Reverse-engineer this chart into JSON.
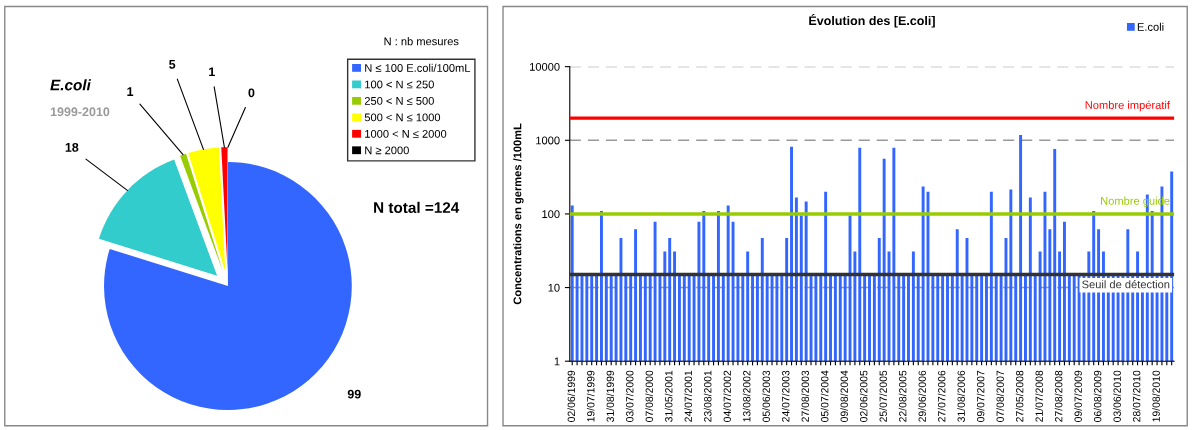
{
  "chart_data": [
    {
      "type": "pie",
      "title": "E.coli",
      "subtitle": "1999-2010",
      "categories": [
        "N ≤ 100 E.coli/100mL",
        "100 < N ≤ 250",
        "250 < N ≤ 500",
        "500 < N ≤ 1000",
        "1000 < N ≤ 2000",
        "N ≥ 2000"
      ],
      "values": [
        99,
        18,
        1,
        5,
        1,
        0
      ],
      "colors": [
        "#3366ff",
        "#33cccc",
        "#99cc00",
        "#ffff00",
        "#ff0000",
        "#000000"
      ],
      "value_labels": [
        "99",
        "18",
        "1",
        "5",
        "1",
        "0"
      ],
      "legend": "right",
      "annotations": [
        "N : nb mesures",
        "N total =124"
      ]
    },
    {
      "type": "bar",
      "title": "Évolution des [E.coli]",
      "ylabel": "Concentrations en germes /100mL",
      "categories": [
        "02/06/1999",
        null,
        null,
        null,
        "19/07/1999",
        null,
        null,
        null,
        "31/08/1999",
        null,
        null,
        null,
        "03/07/2000",
        null,
        null,
        null,
        "07/08/2000",
        null,
        null,
        null,
        "31/05/2001",
        null,
        null,
        null,
        "24/07/2001",
        null,
        null,
        null,
        "23/08/2001",
        null,
        null,
        null,
        "04/07/2002",
        null,
        null,
        null,
        "13/08/2002",
        null,
        null,
        null,
        "05/06/2003",
        null,
        null,
        null,
        "24/07/2003",
        null,
        null,
        null,
        "27/08/2003",
        null,
        null,
        null,
        "05/07/2004",
        null,
        null,
        null,
        "09/08/2004",
        null,
        null,
        null,
        "02/06/2005",
        null,
        null,
        null,
        "25/07/2005",
        null,
        null,
        null,
        "22/08/2005",
        null,
        null,
        null,
        "29/06/2006",
        null,
        null,
        null,
        "27/07/2006",
        null,
        null,
        null,
        "31/08/2006",
        null,
        null,
        null,
        "09/07/2007",
        null,
        null,
        null,
        "07/08/2007",
        null,
        null,
        null,
        "27/05/2008",
        null,
        null,
        null,
        "21/07/2008",
        null,
        null,
        null,
        "27/08/2008",
        null,
        null,
        null,
        "09/07/2009",
        null,
        null,
        null,
        "06/08/2009",
        null,
        null,
        null,
        "03/06/2010",
        null,
        null,
        null,
        "28/07/2010",
        null,
        null,
        null,
        "19/08/2010",
        null,
        null,
        null
      ],
      "series": [
        {
          "name": "E.coli",
          "color": "#3366ff",
          "values": [
            130,
            15,
            15,
            15,
            15,
            15,
            110,
            15,
            15,
            15,
            47,
            15,
            15,
            62,
            15,
            15,
            15,
            78,
            15,
            31,
            47,
            31,
            15,
            15,
            15,
            15,
            78,
            110,
            15,
            15,
            110,
            15,
            130,
            78,
            15,
            15,
            31,
            15,
            15,
            47,
            15,
            15,
            15,
            15,
            47,
            820,
            167,
            95,
            147,
            15,
            15,
            15,
            200,
            15,
            15,
            15,
            15,
            95,
            31,
            790,
            15,
            15,
            15,
            47,
            560,
            31,
            790,
            15,
            15,
            15,
            31,
            15,
            235,
            200,
            15,
            15,
            15,
            15,
            15,
            62,
            15,
            47,
            15,
            15,
            15,
            15,
            200,
            15,
            15,
            47,
            214,
            15,
            1180,
            15,
            167,
            15,
            31,
            200,
            62,
            760,
            31,
            78,
            15,
            15,
            15,
            15,
            31,
            110,
            62,
            31,
            15,
            15,
            15,
            15,
            62,
            15,
            31,
            15,
            183,
            110,
            15,
            235,
            15,
            376
          ]
        }
      ],
      "log": true,
      "ylim": [
        1,
        10000
      ],
      "yticks": [
        1,
        10,
        100,
        1000,
        10000
      ],
      "grid": "y",
      "legend": "top right",
      "ref_lines": [
        {
          "axis": "y",
          "value": 2000,
          "label": "Nombre impératif",
          "color": "#ff0000"
        },
        {
          "axis": "y",
          "value": 100,
          "label": "Nombre guide",
          "color": "#99cc00"
        },
        {
          "axis": "y",
          "value": 15,
          "label": "Seuil de détection",
          "color": "#333333"
        }
      ]
    }
  ]
}
